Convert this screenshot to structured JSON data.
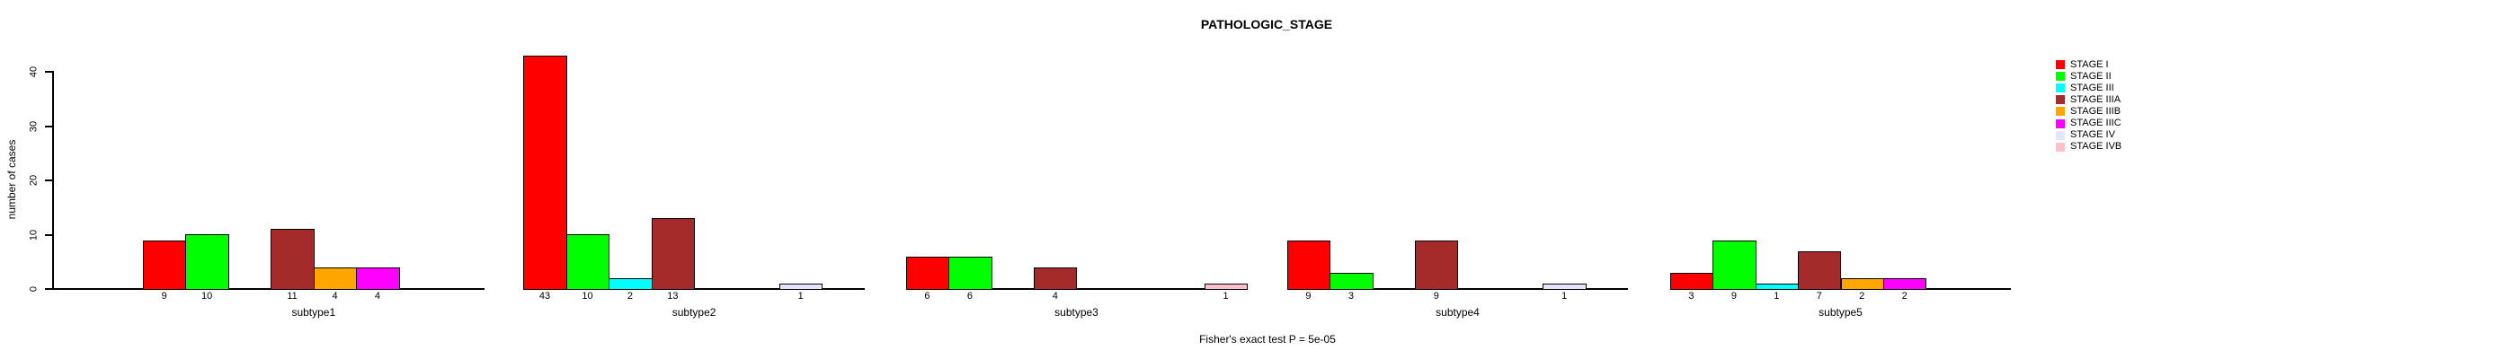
{
  "chart_data": {
    "type": "bar",
    "title": "PATHOLOGIC_STAGE",
    "subtitle": "Fisher's exact test P = 5e-05",
    "ylabel": "number of cases",
    "ylim": [
      0,
      45
    ],
    "yticks": [
      0,
      10,
      20,
      30,
      40
    ],
    "grid": false,
    "legend_position": "right",
    "stages": [
      {
        "name": "STAGE I",
        "color": "#FF0000"
      },
      {
        "name": "STAGE II",
        "color": "#00FF00"
      },
      {
        "name": "STAGE III",
        "color": "#00FFFF"
      },
      {
        "name": "STAGE IIIA",
        "color": "#A52A2A"
      },
      {
        "name": "STAGE IIIB",
        "color": "#FFA500"
      },
      {
        "name": "STAGE IIIC",
        "color": "#FF00FF"
      },
      {
        "name": "STAGE IV",
        "color": "#E6E6FA"
      },
      {
        "name": "STAGE IVB",
        "color": "#FFC0CB"
      }
    ],
    "categories": [
      "subtype1",
      "subtype2",
      "subtype3",
      "subtype4",
      "subtype5"
    ],
    "groups": [
      {
        "label": "subtype1",
        "values": [
          9,
          10,
          0,
          11,
          4,
          4,
          0,
          0
        ]
      },
      {
        "label": "subtype2",
        "values": [
          43,
          10,
          2,
          13,
          0,
          0,
          1,
          0
        ]
      },
      {
        "label": "subtype3",
        "values": [
          6,
          6,
          0,
          4,
          0,
          0,
          0,
          1
        ]
      },
      {
        "label": "subtype4",
        "values": [
          9,
          3,
          0,
          9,
          0,
          0,
          1,
          0
        ]
      },
      {
        "label": "subtype5",
        "values": [
          3,
          9,
          1,
          7,
          2,
          2,
          0,
          0
        ]
      }
    ]
  }
}
